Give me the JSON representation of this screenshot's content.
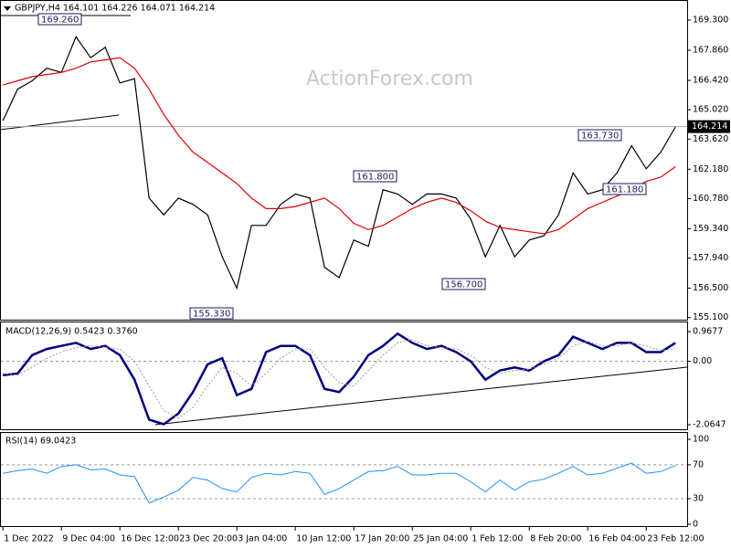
{
  "chart_data": [
    {
      "type": "line",
      "title": "GBPJPY,H4  164.101 164.226 164.071 164.214",
      "watermark": "ActionForex.com",
      "x": [
        0,
        1,
        2,
        3,
        4,
        5,
        6,
        7,
        8,
        9,
        10,
        11,
        12,
        13,
        14,
        15,
        16,
        17,
        18,
        19,
        20,
        21,
        22,
        23,
        24,
        25,
        26,
        27,
        28,
        29,
        30,
        31,
        32,
        33,
        34,
        35,
        36,
        37,
        38,
        39,
        40,
        41,
        42,
        43,
        44,
        45,
        46
      ],
      "xlim": [
        -0.2,
        46.8
      ],
      "ylim": [
        155.0,
        170.17
      ],
      "yticks": [
        {
          "value": 169.3,
          "label": "169.300"
        },
        {
          "value": 167.86,
          "label": "167.860"
        },
        {
          "value": 166.42,
          "label": "166.420"
        },
        {
          "value": 165.02,
          "label": "165.020"
        },
        {
          "value": 163.62,
          "label": "163.620"
        },
        {
          "value": 162.18,
          "label": "162.180"
        },
        {
          "value": 160.78,
          "label": "160.780"
        },
        {
          "value": 159.34,
          "label": "159.340"
        },
        {
          "value": 157.94,
          "label": "157.940"
        },
        {
          "value": 156.5,
          "label": "156.500"
        },
        {
          "value": 155.1,
          "label": "155.100"
        }
      ],
      "series": [
        {
          "color": "#000000",
          "values": [
            164.5,
            166.0,
            166.4,
            167.0,
            166.8,
            168.5,
            167.5,
            168.0,
            166.3,
            166.5,
            160.8,
            160.0,
            160.8,
            160.5,
            160.0,
            158.0,
            156.5,
            159.5,
            159.5,
            160.5,
            161.0,
            160.8,
            157.5,
            157.0,
            158.8,
            158.5,
            161.2,
            161.0,
            160.5,
            161.0,
            161.0,
            160.8,
            159.8,
            158.0,
            159.5,
            158.0,
            158.8,
            159.0,
            160.0,
            162.0,
            161.0,
            161.2,
            162.0,
            163.3,
            162.2,
            163.0,
            164.2
          ]
        },
        {
          "color": "#e00000",
          "values": [
            166.2,
            166.4,
            166.6,
            166.7,
            166.8,
            167.0,
            167.3,
            167.4,
            167.5,
            167.0,
            166.0,
            164.8,
            163.8,
            163.0,
            162.5,
            162.0,
            161.5,
            160.8,
            160.3,
            160.3,
            160.4,
            160.6,
            160.8,
            160.3,
            159.6,
            159.3,
            159.5,
            159.9,
            160.3,
            160.6,
            160.8,
            160.6,
            160.2,
            159.7,
            159.4,
            159.3,
            159.2,
            159.1,
            159.3,
            159.8,
            160.3,
            160.6,
            160.9,
            161.2,
            161.6,
            161.8,
            162.3
          ]
        }
      ],
      "last_price": 164.214,
      "annotations": [
        "169.260",
        "155.330",
        "161.800",
        "156.700",
        "163.730",
        "161.180"
      ]
    },
    {
      "type": "line",
      "title": "MACD(12,26,9) 0.5423 0.3760",
      "ylim": [
        -2.213,
        1.295
      ],
      "yticks": [
        0.9677,
        {
          "value": 0,
          "label": "0.00"
        },
        -2.0647
      ],
      "levels": [
        0
      ],
      "series": [
        {
          "color": "#000080",
          "values": [
            -0.45,
            -0.4,
            0.2,
            0.4,
            0.5,
            0.6,
            0.4,
            0.5,
            0.2,
            -0.6,
            -1.9,
            -2.05,
            -1.7,
            -1.0,
            -0.1,
            0.1,
            -1.1,
            -0.9,
            0.3,
            0.5,
            0.5,
            0.2,
            -0.9,
            -1.0,
            -0.5,
            0.2,
            0.5,
            0.9,
            0.6,
            0.4,
            0.5,
            0.3,
            0.0,
            -0.6,
            -0.3,
            -0.2,
            -0.3,
            0.0,
            0.2,
            0.8,
            0.6,
            0.4,
            0.6,
            0.6,
            0.3,
            0.3,
            0.6
          ]
        },
        {
          "color": "#9a9a9a",
          "values": [
            -0.4,
            -0.45,
            -0.2,
            0.1,
            0.3,
            0.45,
            0.5,
            0.45,
            0.4,
            0.0,
            -0.8,
            -1.6,
            -1.85,
            -1.5,
            -0.8,
            -0.2,
            -0.4,
            -0.8,
            -0.4,
            0.1,
            0.4,
            0.4,
            -0.2,
            -0.7,
            -0.8,
            -0.3,
            0.2,
            0.6,
            0.7,
            0.5,
            0.45,
            0.4,
            0.2,
            -0.2,
            -0.4,
            -0.3,
            -0.25,
            -0.1,
            0.1,
            0.5,
            0.65,
            0.5,
            0.5,
            0.6,
            0.5,
            0.35,
            0.4
          ]
        }
      ]
    },
    {
      "type": "line",
      "title": "RSI(14) 69.0423",
      "ylim": [
        -2.2,
        107.5
      ],
      "yticks": [
        100,
        70,
        30,
        0
      ],
      "levels": [
        70,
        30
      ],
      "xticks": [
        {
          "value": 0,
          "label": "1 Dec 2022"
        },
        {
          "value": 4,
          "label": "9 Dec 04:00"
        },
        {
          "value": 8,
          "label": "16 Dec 12:00"
        },
        {
          "value": 12,
          "label": "23 Dec 20:00"
        },
        {
          "value": 16,
          "label": "3 Jan 04:00"
        },
        {
          "value": 20,
          "label": "10 Jan 12:00"
        },
        {
          "value": 24,
          "label": "17 Jan 20:00"
        },
        {
          "value": 28,
          "label": "25 Jan 04:00"
        },
        {
          "value": 32,
          "label": "1 Feb 12:00"
        },
        {
          "value": 36,
          "label": "8 Feb 20:00"
        },
        {
          "value": 40,
          "label": "16 Feb 04:00"
        },
        {
          "value": 44,
          "label": "23 Feb 12:00"
        }
      ],
      "series": [
        {
          "color": "#1e90ff",
          "values": [
            60,
            63,
            65,
            60,
            68,
            70,
            64,
            65,
            58,
            56,
            25,
            32,
            40,
            55,
            52,
            42,
            38,
            55,
            60,
            58,
            62,
            60,
            35,
            42,
            52,
            62,
            63,
            68,
            58,
            58,
            60,
            60,
            50,
            38,
            52,
            40,
            50,
            53,
            60,
            68,
            58,
            60,
            66,
            72,
            60,
            62,
            69
          ]
        }
      ]
    }
  ]
}
